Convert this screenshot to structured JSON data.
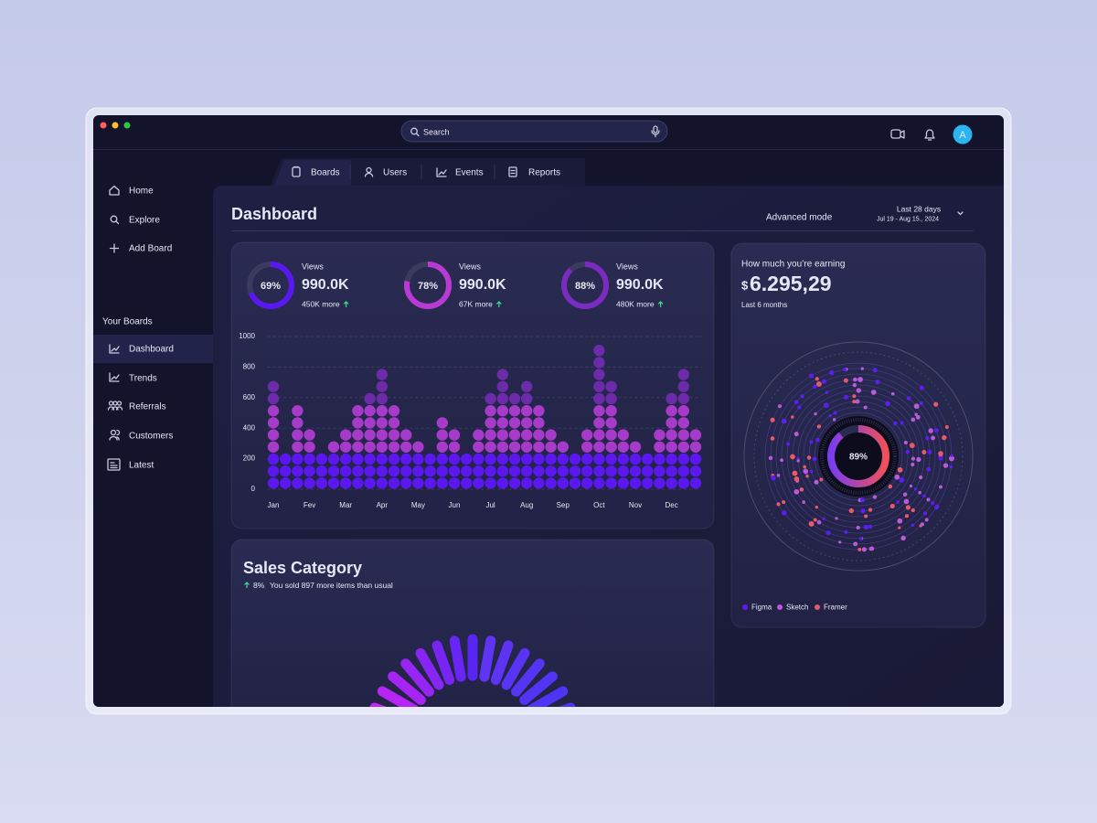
{
  "search": {
    "placeholder": "Search"
  },
  "avatar": "A",
  "tabs": [
    "Boards",
    "Users",
    "Events",
    "Reports"
  ],
  "nav": [
    "Home",
    "Explore",
    "Add Board"
  ],
  "boards_heading": "Your Boards",
  "boards": [
    "Dashboard",
    "Trends",
    "Referrals",
    "Customers",
    "Latest"
  ],
  "header": {
    "title": "Dashboard",
    "mode": "Advanced mode",
    "range": "Last 28 days",
    "dates": "Jul 19 - Aug 15., 2024"
  },
  "stats": [
    {
      "percent": 69,
      "percent_label": "69%",
      "color": "#5b17f0",
      "label": "Views",
      "value": "990.0K",
      "change": "450K more"
    },
    {
      "percent": 78,
      "percent_label": "78%",
      "color": "#b83ad2",
      "label": "Views",
      "value": "990.0K",
      "change": "67K more"
    },
    {
      "percent": 88,
      "percent_label": "88%",
      "color": "#7a2bc0",
      "label": "Views",
      "value": "990.0K",
      "change": "480K more"
    }
  ],
  "chart_data": {
    "type": "dot-bar",
    "categories": [
      "Jan",
      null,
      null,
      "Fev",
      null,
      null,
      "Mar",
      null,
      null,
      "Apr",
      null,
      null,
      "May",
      null,
      null,
      "Jun",
      null,
      null,
      "Jul",
      null,
      null,
      "Aug",
      null,
      null,
      "Sep",
      null,
      null,
      "Oct",
      null,
      null,
      "Nov",
      null,
      null,
      "Dec",
      null,
      null
    ],
    "values": [
      700,
      200,
      530,
      370,
      200,
      280,
      370,
      530,
      610,
      770,
      530,
      370,
      280,
      200,
      450,
      370,
      200,
      370,
      610,
      770,
      610,
      690,
      530,
      370,
      280,
      200,
      370,
      930,
      690,
      370,
      280,
      200,
      370,
      610,
      770,
      370
    ],
    "colors": [
      "#5a17ee",
      "#a63ac9",
      "#6c2ba9"
    ],
    "ylim": [
      0,
      1000
    ],
    "yticks": [
      0,
      200,
      400,
      600,
      800,
      1000
    ],
    "grid": true
  },
  "earnings": {
    "title": "How much you’re earning",
    "currency": "$",
    "amount": "6.295,29",
    "period": "Last 6 months",
    "percent": 89,
    "percent_label": "89%",
    "legend": [
      {
        "name": "Figma",
        "color": "#5a1ff0"
      },
      {
        "name": "Sketch",
        "color": "#b85bd8"
      },
      {
        "name": "Framer",
        "color": "#e85a6a"
      }
    ]
  },
  "sales": {
    "title": "Sales Category",
    "change": "8%",
    "note": "You sold 897 more items than usual"
  }
}
